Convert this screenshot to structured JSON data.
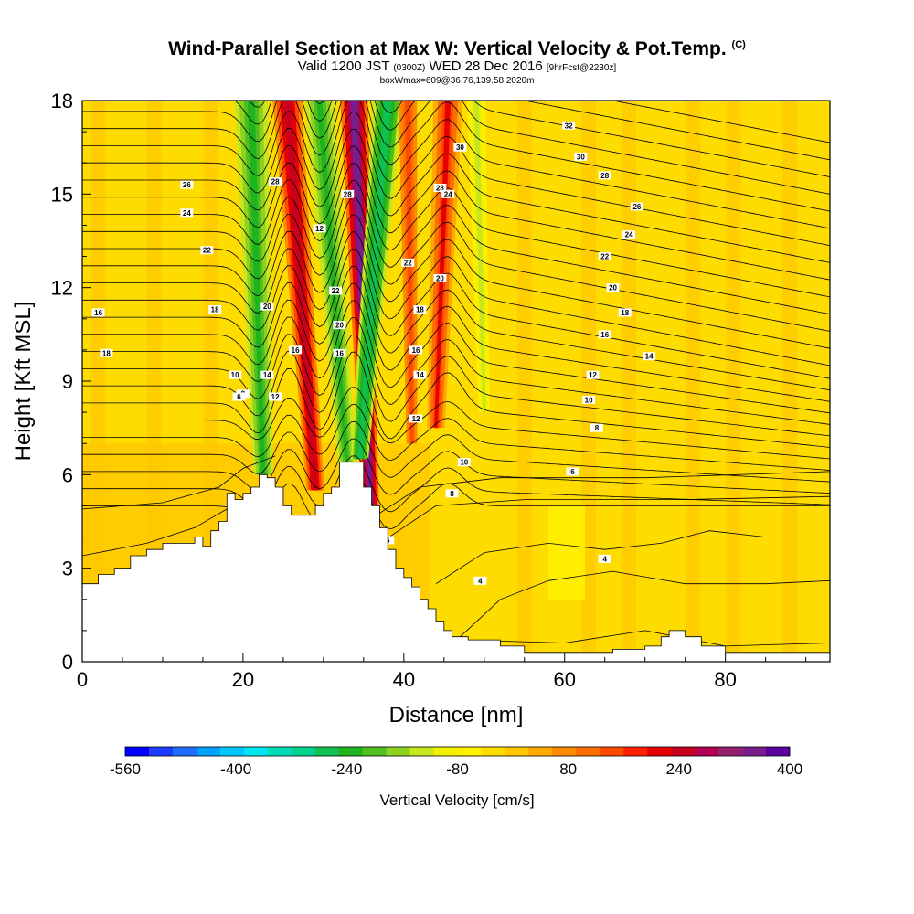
{
  "title": {
    "line1": "Wind-Parallel Section at Max W: Vertical Velocity & Pot.Temp.",
    "copyright": "(C)",
    "line2_main": "Valid 1200 JST",
    "line2_utc": "(0300Z)",
    "line2_date": "WED 28 Dec 2016",
    "line2_fcst": "[9hrFcst@2230z]",
    "line3": "boxWmax=609@36.76,139.58,2020m"
  },
  "chart_data": {
    "type": "heatmap",
    "xlabel": "Distance [nm]",
    "ylabel": "Height [Kft MSL]",
    "xlim": [
      0,
      93
    ],
    "ylim": [
      0,
      18
    ],
    "x_ticks": [
      0,
      20,
      40,
      60,
      80
    ],
    "y_ticks": [
      0,
      3,
      6,
      9,
      12,
      15,
      18
    ],
    "colorbar": {
      "label": "Vertical Velocity [cm/s]",
      "tick_labels": [
        "-560",
        "-400",
        "-240",
        "-80",
        "80",
        "240",
        "400"
      ],
      "colors": [
        "#0000ff",
        "#1e3cff",
        "#1e6eff",
        "#00a0ff",
        "#00c8ff",
        "#00e6f0",
        "#00dcb4",
        "#00d28c",
        "#10c050",
        "#1eb41e",
        "#50be1e",
        "#8cd21e",
        "#c8e61e",
        "#f0f000",
        "#fff000",
        "#ffdc00",
        "#ffc800",
        "#ffaa00",
        "#ff8c00",
        "#ff6e00",
        "#ff4a00",
        "#ff2000",
        "#e60000",
        "#c8001e",
        "#b40050",
        "#961e6e",
        "#781e8c",
        "#5a00a0"
      ]
    },
    "ascent_bands_x_nm": [
      25.5,
      33.8,
      45.5
    ],
    "descent_bands_x_nm": [
      22.5,
      29.5,
      38.0
    ],
    "contour_labels": [
      {
        "text": "30",
        "x": 47.0,
        "y": 16.5
      },
      {
        "text": "32",
        "x": 60.5,
        "y": 17.2
      },
      {
        "text": "30",
        "x": 62.0,
        "y": 16.2
      },
      {
        "text": "28",
        "x": 65.0,
        "y": 15.6
      },
      {
        "text": "26",
        "x": 69.0,
        "y": 14.6
      },
      {
        "text": "24",
        "x": 68.0,
        "y": 13.7
      },
      {
        "text": "22",
        "x": 65.0,
        "y": 13.0
      },
      {
        "text": "20",
        "x": 66.0,
        "y": 12.0
      },
      {
        "text": "18",
        "x": 67.5,
        "y": 11.2
      },
      {
        "text": "16",
        "x": 65.0,
        "y": 10.5
      },
      {
        "text": "14",
        "x": 70.5,
        "y": 9.8
      },
      {
        "text": "12",
        "x": 63.5,
        "y": 9.2
      },
      {
        "text": "10",
        "x": 63.0,
        "y": 8.4
      },
      {
        "text": "8",
        "x": 64.0,
        "y": 7.5
      },
      {
        "text": "6",
        "x": 61.0,
        "y": 6.1
      },
      {
        "text": "4",
        "x": 65.0,
        "y": 3.3
      },
      {
        "text": "4",
        "x": 49.5,
        "y": 2.6
      },
      {
        "text": "26",
        "x": 13.0,
        "y": 15.3
      },
      {
        "text": "24",
        "x": 13.0,
        "y": 14.4
      },
      {
        "text": "22",
        "x": 15.5,
        "y": 13.2
      },
      {
        "text": "18",
        "x": 16.5,
        "y": 11.3
      },
      {
        "text": "16",
        "x": 2.0,
        "y": 11.2
      },
      {
        "text": "18",
        "x": 3.0,
        "y": 9.9
      },
      {
        "text": "28",
        "x": 24.0,
        "y": 15.4
      },
      {
        "text": "20",
        "x": 23.0,
        "y": 11.4
      },
      {
        "text": "14",
        "x": 23.0,
        "y": 9.2
      },
      {
        "text": "12",
        "x": 24.0,
        "y": 8.5
      },
      {
        "text": "10",
        "x": 19.0,
        "y": 9.2
      },
      {
        "text": "8",
        "x": 20.0,
        "y": 8.6
      },
      {
        "text": "6",
        "x": 19.5,
        "y": 8.5
      },
      {
        "text": "12",
        "x": 29.5,
        "y": 13.9
      },
      {
        "text": "22",
        "x": 31.5,
        "y": 11.9
      },
      {
        "text": "20",
        "x": 32.0,
        "y": 10.8
      },
      {
        "text": "16",
        "x": 32.0,
        "y": 9.9
      },
      {
        "text": "16",
        "x": 26.5,
        "y": 10.0
      },
      {
        "text": "22",
        "x": 40.5,
        "y": 12.8
      },
      {
        "text": "20",
        "x": 44.5,
        "y": 12.3
      },
      {
        "text": "18",
        "x": 42.0,
        "y": 11.3
      },
      {
        "text": "16",
        "x": 41.5,
        "y": 10.0
      },
      {
        "text": "14",
        "x": 42.0,
        "y": 9.2
      },
      {
        "text": "12",
        "x": 41.5,
        "y": 7.8
      },
      {
        "text": "10",
        "x": 47.5,
        "y": 6.4
      },
      {
        "text": "8",
        "x": 46.0,
        "y": 5.4
      },
      {
        "text": "6",
        "x": 38.0,
        "y": 3.9
      },
      {
        "text": "28",
        "x": 44.5,
        "y": 15.2
      },
      {
        "text": "24",
        "x": 45.5,
        "y": 15.0
      },
      {
        "text": "28",
        "x": 33.0,
        "y": 15.0
      }
    ],
    "terrain_top_kft": [
      [
        0,
        2.5
      ],
      [
        1,
        2.5
      ],
      [
        2,
        2.8
      ],
      [
        4,
        3.0
      ],
      [
        6,
        3.4
      ],
      [
        8,
        3.6
      ],
      [
        10,
        3.8
      ],
      [
        13,
        3.8
      ],
      [
        14,
        4.0
      ],
      [
        15,
        3.7
      ],
      [
        16,
        4.2
      ],
      [
        17,
        4.5
      ],
      [
        18,
        5.4
      ],
      [
        19,
        5.2
      ],
      [
        20,
        5.4
      ],
      [
        21,
        5.6
      ],
      [
        22,
        6.0
      ],
      [
        23,
        5.9
      ],
      [
        24,
        5.6
      ],
      [
        25,
        5.0
      ],
      [
        26,
        4.7
      ],
      [
        27,
        4.7
      ],
      [
        28,
        4.7
      ],
      [
        29,
        5.0
      ],
      [
        30,
        5.4
      ],
      [
        31,
        5.6
      ],
      [
        32,
        6.4
      ],
      [
        34,
        6.4
      ],
      [
        35,
        5.6
      ],
      [
        36,
        5.0
      ],
      [
        37,
        4.3
      ],
      [
        38,
        3.6
      ],
      [
        39,
        3.0
      ],
      [
        40,
        2.7
      ],
      [
        41,
        2.4
      ],
      [
        42,
        2.0
      ],
      [
        43,
        1.7
      ],
      [
        44,
        1.3
      ],
      [
        45,
        1.0
      ],
      [
        46,
        0.8
      ],
      [
        48,
        0.7
      ],
      [
        52,
        0.5
      ],
      [
        55,
        0.3
      ],
      [
        60,
        0.3
      ],
      [
        66,
        0.4
      ],
      [
        70,
        0.5
      ],
      [
        72,
        0.8
      ],
      [
        73,
        1.0
      ],
      [
        75,
        0.8
      ],
      [
        77,
        0.5
      ],
      [
        80,
        0.3
      ],
      [
        93,
        0.3
      ]
    ]
  }
}
